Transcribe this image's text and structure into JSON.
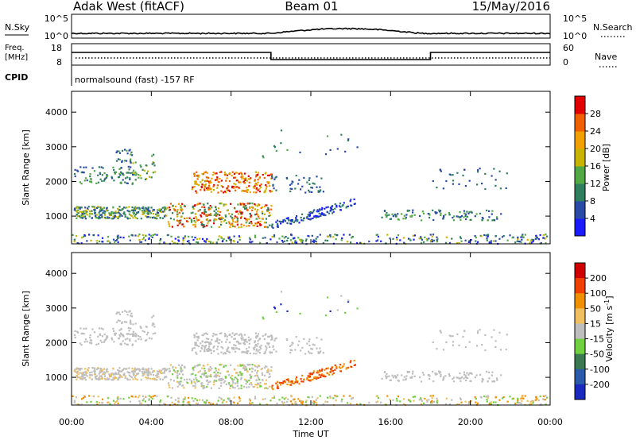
{
  "header": {
    "station": "Adak West (fitACF)",
    "beam": "Beam 01",
    "date": "15/May/2016"
  },
  "noise_panel": {
    "left_label": "N.Sky",
    "right_label": "N.Search",
    "left_ticks": [
      "10^5",
      "10^0"
    ],
    "right_ticks": [
      "10^5",
      "10^0"
    ]
  },
  "freq_panel": {
    "left_label_1": "Freq.",
    "left_label_2": "[MHz]",
    "left_ticks": [
      "18",
      "8"
    ],
    "right_label": "Nave",
    "right_ticks": [
      "60",
      "0"
    ],
    "cpid_label": "CPID",
    "cpid_text": "normalsound (fast) -157 RF"
  },
  "colors": {
    "power": [
      "#1a1aff",
      "#2a4aa8",
      "#2f7f5f",
      "#52a845",
      "#c8b400",
      "#f0a000",
      "#f06000",
      "#e00000"
    ],
    "velocity": [
      "#d00000",
      "#f04000",
      "#f09000",
      "#f0c060",
      "#bebebe",
      "#70d040",
      "#3a7a50",
      "#2a5aaa",
      "#1a2ac0"
    ]
  },
  "chart_data": [
    {
      "type": "heatmap",
      "name": "Power",
      "ylabel": "Slant Range [km]",
      "ylim": [
        200,
        4600
      ],
      "yticks": [
        1000,
        2000,
        3000,
        4000
      ],
      "xlim": [
        0,
        24
      ],
      "colorbar": {
        "label": "Power [dB]",
        "ticks": [
          "4",
          "8",
          "12",
          "16",
          "20",
          "24",
          "28"
        ],
        "range": [
          0,
          32
        ]
      }
    },
    {
      "type": "heatmap",
      "name": "Velocity",
      "ylabel": "Slant Range [km]",
      "xlabel": "Time UT",
      "ylim": [
        200,
        4600
      ],
      "yticks": [
        1000,
        2000,
        3000,
        4000
      ],
      "xlim": [
        0,
        24
      ],
      "xticks": [
        "00:00",
        "04:00",
        "08:00",
        "12:00",
        "16:00",
        "20:00",
        "00:00"
      ],
      "colorbar": {
        "label": "Velocity [m s^-1]",
        "ticks": [
          "200",
          "100",
          "50",
          "15",
          "-15",
          "-50",
          "-100",
          "-200"
        ]
      }
    }
  ]
}
